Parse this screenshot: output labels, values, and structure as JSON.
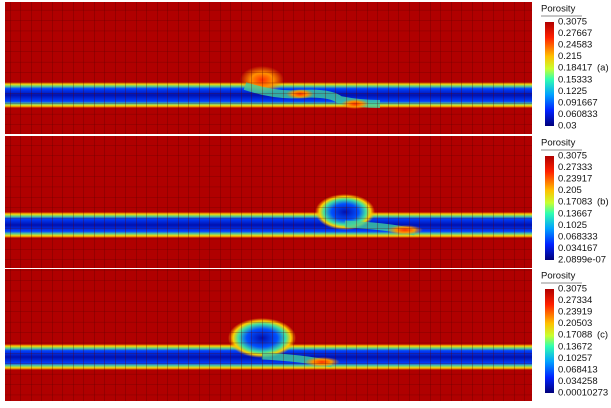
{
  "panels": [
    {
      "legend_title": "Porosity",
      "label": "(a)",
      "ticks": [
        "0.3075",
        "0.27667",
        "0.24583",
        "0.215",
        "0.18417",
        "0.15333",
        "0.1225",
        "0.091667",
        "0.060833",
        "0.03"
      ]
    },
    {
      "legend_title": "Porosity",
      "label": "(b)",
      "ticks": [
        "0.3075",
        "0.27333",
        "0.23917",
        "0.205",
        "0.17083",
        "0.13667",
        "0.1025",
        "0.068333",
        "0.034167",
        "2.0899e-07"
      ]
    },
    {
      "legend_title": "Porosity",
      "label": "(c)",
      "ticks": [
        "0.3075",
        "0.27334",
        "0.23919",
        "0.20503",
        "0.17088",
        "0.13672",
        "0.10257",
        "0.068413",
        "0.034258",
        "0.00010273"
      ]
    }
  ]
}
